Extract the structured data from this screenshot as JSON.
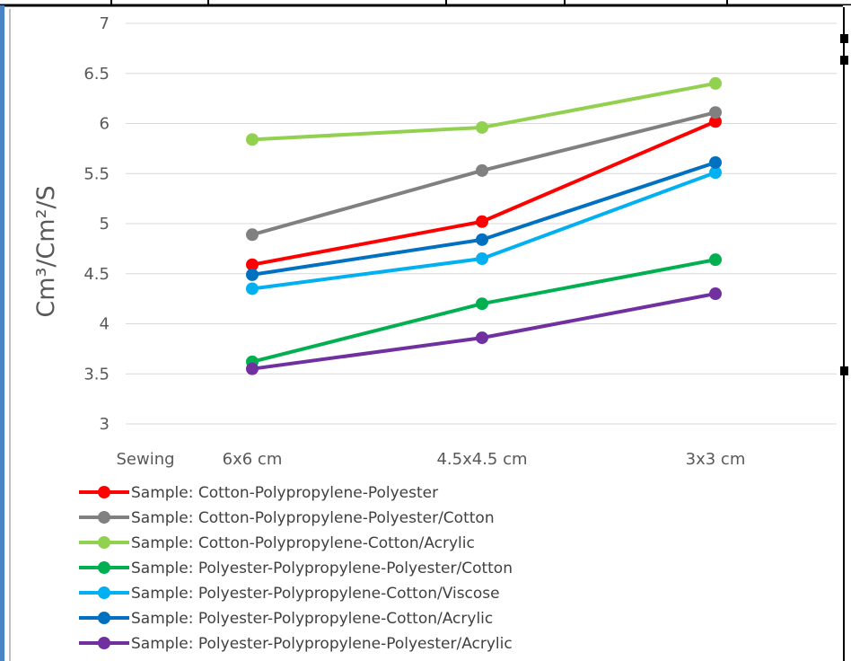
{
  "chart_data": {
    "type": "line",
    "title": "",
    "xlabel": "",
    "ylabel": "Cm³/Cm²/S",
    "categories": [
      "Sewing",
      "6x6 cm",
      "4.5x4.5 cm",
      "3x3 cm"
    ],
    "ylim": [
      3,
      7
    ],
    "yticks": [
      "3",
      "3.5",
      "4",
      "4.5",
      "5",
      "5.5",
      "6",
      "6.5",
      "7"
    ],
    "grid": "horizontal",
    "legend_position": "bottom-left",
    "series": [
      {
        "name": "Sample: Cotton-Polypropylene-Polyester",
        "color": "#ff0000",
        "values": [
          null,
          4.59,
          5.02,
          6.02
        ]
      },
      {
        "name": "Sample: Cotton-Polypropylene-Polyester/Cotton",
        "color": "#808080",
        "values": [
          null,
          4.89,
          5.53,
          6.11
        ]
      },
      {
        "name": "Sample: Cotton-Polypropylene-Cotton/Acrylic",
        "color": "#92d050",
        "values": [
          null,
          5.84,
          5.96,
          6.4
        ]
      },
      {
        "name": "Sample: Polyester-Polypropylene-Polyester/Cotton",
        "color": "#00b050",
        "values": [
          null,
          3.62,
          4.2,
          4.64
        ]
      },
      {
        "name": "Sample: Polyester-Polypropylene-Cotton/Viscose",
        "color": "#00b0f0",
        "values": [
          null,
          4.35,
          4.65,
          5.51
        ]
      },
      {
        "name": "Sample: Polyester-Polypropylene-Cotton/Acrylic",
        "color": "#0070c0",
        "values": [
          null,
          4.49,
          4.84,
          5.61
        ]
      },
      {
        "name": "Sample: Polyester-Polypropylene-Polyester/Acrylic",
        "color": "#7030a0",
        "values": [
          null,
          3.55,
          3.86,
          4.3
        ]
      }
    ]
  }
}
